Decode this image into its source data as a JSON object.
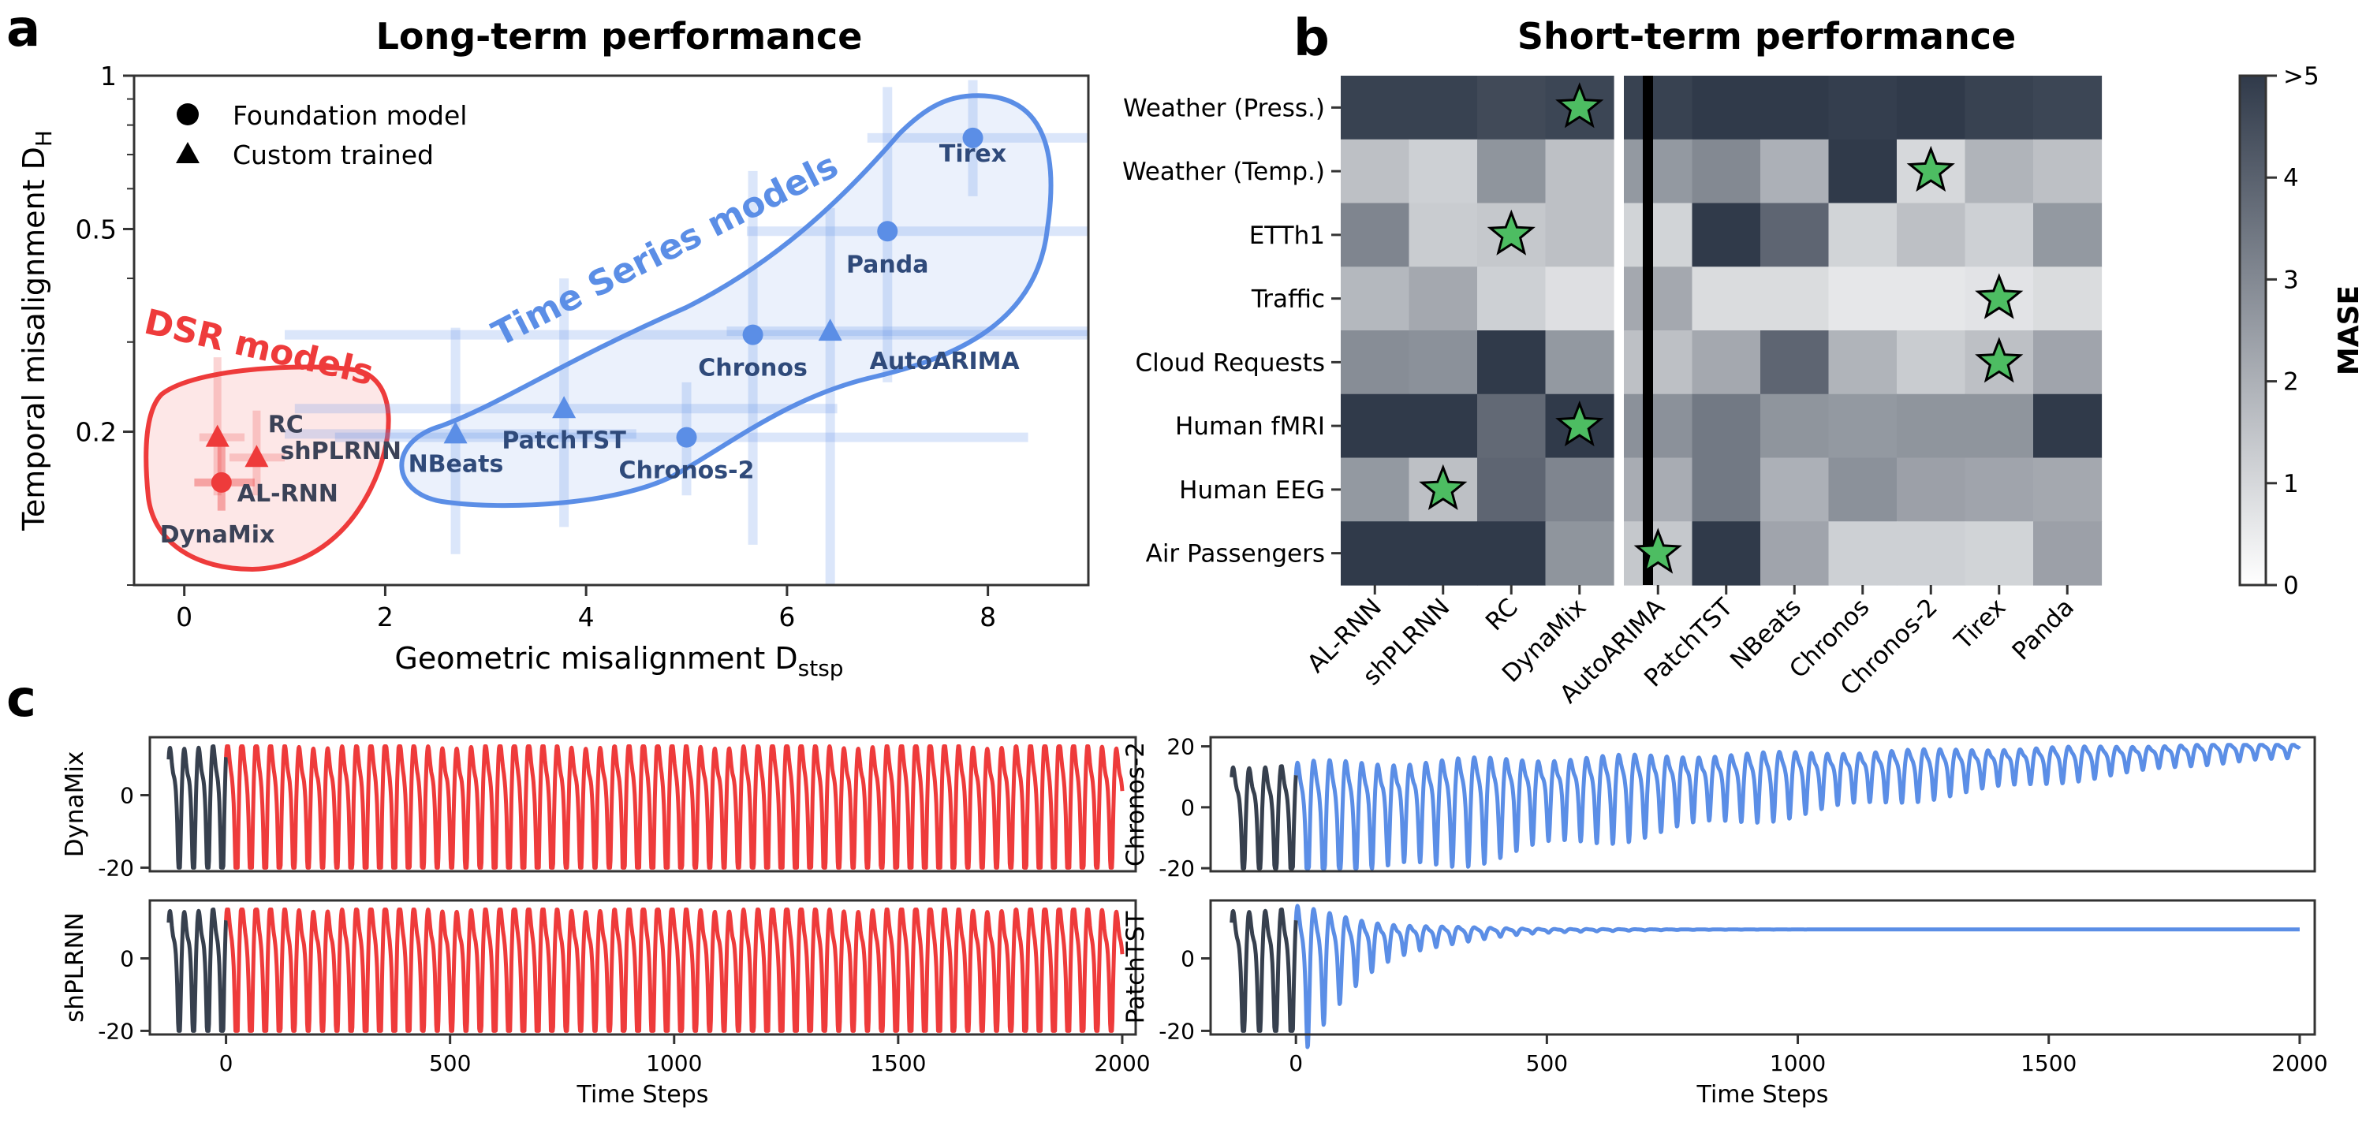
{
  "panels": {
    "a": {
      "letter": "a",
      "title": "Long-term performance"
    },
    "b": {
      "letter": "b",
      "title": "Short-term performance"
    },
    "c": {
      "letter": "c"
    }
  },
  "colors": {
    "dsr": "#ee3b3b",
    "ts": "#5b8ee6",
    "ts_label": "#2f4a7a",
    "dark_series": "#37404e",
    "star": "#4dbd62"
  },
  "chart_data": [
    {
      "id": "scatter",
      "type": "scatter",
      "title": "Long-term performance",
      "xlabel": "Geometric misalignment D",
      "xlabel_sub": "stsp",
      "ylabel": "Temporal misalignment D",
      "ylabel_sub": "H",
      "xlim": [
        -0.5,
        9
      ],
      "ylim": [
        0.1,
        1.0
      ],
      "yscale": "log",
      "xticks": [
        0,
        2,
        4,
        6,
        8
      ],
      "yticks": [
        0.2,
        0.5,
        1
      ],
      "ytick_labels": [
        "0.2",
        "0.5",
        "1"
      ],
      "legend": {
        "position": "top-left",
        "entries": [
          {
            "label": "Foundation model",
            "marker": "circle"
          },
          {
            "label": "Custom trained",
            "marker": "triangle"
          }
        ]
      },
      "groups": [
        {
          "label": "DSR models",
          "color": "#ee3b3b"
        },
        {
          "label": "Time Series models",
          "color": "#5b8ee6"
        }
      ],
      "points": [
        {
          "name": "RC",
          "x": 0.33,
          "y": 0.195,
          "marker": "triangle",
          "group": "dsr",
          "xerr": [
            0.15,
            0.6
          ],
          "yerr": [
            0.15,
            0.28
          ]
        },
        {
          "name": "shPLRNN",
          "x": 0.72,
          "y": 0.178,
          "marker": "triangle",
          "group": "dsr",
          "xerr": [
            0.45,
            1.0
          ],
          "yerr": [
            0.15,
            0.22
          ]
        },
        {
          "name": "AL-RNN",
          "x": 0.37,
          "y": 0.159,
          "marker": "circle",
          "group": "dsr",
          "xerr": [
            0.1,
            0.7
          ],
          "yerr": [
            0.14,
            0.19
          ]
        },
        {
          "name": "DynaMix",
          "x": 0.37,
          "y": 0.159,
          "marker": "circle",
          "group": "dsr",
          "xerr": [
            0.1,
            0.7
          ],
          "yerr": [
            0.14,
            0.19
          ]
        },
        {
          "name": "NBeats",
          "x": 2.7,
          "y": 0.198,
          "marker": "triangle",
          "group": "ts",
          "xerr": [
            1.0,
            4.5
          ],
          "yerr": [
            0.115,
            0.32
          ]
        },
        {
          "name": "PatchTST",
          "x": 3.78,
          "y": 0.222,
          "marker": "triangle",
          "group": "ts",
          "xerr": [
            1.1,
            6.5
          ],
          "yerr": [
            0.13,
            0.4
          ]
        },
        {
          "name": "Chronos-2",
          "x": 5.0,
          "y": 0.195,
          "marker": "circle",
          "group": "ts",
          "xerr": [
            1.5,
            8.4
          ],
          "yerr": [
            0.15,
            0.25
          ]
        },
        {
          "name": "Chronos",
          "x": 5.66,
          "y": 0.31,
          "marker": "circle",
          "group": "ts",
          "xerr": [
            1.0,
            9.0
          ],
          "yerr": [
            0.12,
            0.65
          ]
        },
        {
          "name": "AutoARIMA",
          "x": 6.43,
          "y": 0.315,
          "marker": "triangle",
          "group": "ts",
          "xerr": [
            5.4,
            9.0
          ],
          "yerr": [
            0.1,
            0.55
          ]
        },
        {
          "name": "Panda",
          "x": 7.0,
          "y": 0.495,
          "marker": "circle",
          "group": "ts",
          "xerr": [
            5.6,
            9.0
          ],
          "yerr": [
            0.25,
            0.95
          ]
        },
        {
          "name": "Tirex",
          "x": 7.85,
          "y": 0.755,
          "marker": "circle",
          "group": "ts",
          "xerr": [
            6.8,
            9.0
          ],
          "yerr": [
            0.58,
            0.98
          ]
        }
      ]
    },
    {
      "id": "heatmap",
      "type": "heatmap",
      "title": "Short-term performance",
      "rows": [
        "Weather (Press.)",
        "Weather (Temp.)",
        "ETTh1",
        "Traffic",
        "Cloud Requests",
        "Human fMRI",
        "Human EEG",
        "Air Passengers"
      ],
      "columns": [
        "AL-RNN",
        "shPLRNN",
        "RC",
        "DynaMix",
        "AutoARIMA",
        "PatchTST",
        "NBeats",
        "Chronos",
        "Chronos-2",
        "Tirex",
        "Panda"
      ],
      "values": [
        [
          4.8,
          4.8,
          4.6,
          4.7,
          4.8,
          5.0,
          5.0,
          4.9,
          5.0,
          4.8,
          4.7
        ],
        [
          1.6,
          1.2,
          2.7,
          1.6,
          2.6,
          3.0,
          2.0,
          5.0,
          1.0,
          1.9,
          1.6
        ],
        [
          3.1,
          1.3,
          1.4,
          1.6,
          1.1,
          5.0,
          3.9,
          1.1,
          1.6,
          1.2,
          2.6
        ],
        [
          1.8,
          2.2,
          1.2,
          0.8,
          2.2,
          0.9,
          0.9,
          0.6,
          0.6,
          0.7,
          0.9
        ],
        [
          2.9,
          2.8,
          5.0,
          2.6,
          1.6,
          2.2,
          3.9,
          1.9,
          1.3,
          1.6,
          2.3
        ],
        [
          5.0,
          5.0,
          3.8,
          5.0,
          2.8,
          3.4,
          2.7,
          2.6,
          2.7,
          2.7,
          5.0
        ],
        [
          2.6,
          1.6,
          3.9,
          3.1,
          2.1,
          3.4,
          2.0,
          2.8,
          2.4,
          2.3,
          2.2
        ],
        [
          5.0,
          5.0,
          5.0,
          2.7,
          1.4,
          5.0,
          2.3,
          1.2,
          1.2,
          1.1,
          2.4
        ]
      ],
      "stars": [
        {
          "row": "Weather (Press.)",
          "column": "DynaMix"
        },
        {
          "row": "Weather (Temp.)",
          "column": "Chronos-2"
        },
        {
          "row": "ETTh1",
          "column": "RC"
        },
        {
          "row": "Traffic",
          "column": "Tirex"
        },
        {
          "row": "Cloud Requests",
          "column": "Tirex"
        },
        {
          "row": "Human fMRI",
          "column": "DynaMix"
        },
        {
          "row": "Human EEG",
          "column": "shPLRNN"
        },
        {
          "row": "Air Passengers",
          "column": "AutoARIMA"
        }
      ],
      "separator_after_column": "DynaMix",
      "colorbar": {
        "label": "MASE",
        "min": 0,
        "max": 5,
        "ticks": [
          0,
          1,
          2,
          3,
          4,
          5
        ],
        "tick_labels": [
          "0",
          "1",
          "2",
          "3",
          "4",
          ">5"
        ]
      }
    },
    {
      "id": "trace-dynamix",
      "type": "line",
      "ylabel": "DynaMix",
      "xlim": [
        -170,
        2030
      ],
      "ylim": [
        -21,
        16
      ],
      "yticks": [
        -20,
        0
      ],
      "xticks": [],
      "context_steps": 128,
      "prediction_steps": 2000,
      "prediction_color": "#ee3b3b",
      "behavior": "sustained oscillation, amplitude ~ +13 / -20 throughout"
    },
    {
      "id": "trace-chronos2",
      "type": "line",
      "ylabel": "Chronos-2",
      "xlim": [
        -170,
        2030
      ],
      "ylim": [
        -21,
        23
      ],
      "yticks": [
        -20,
        0,
        20
      ],
      "xticks": [],
      "context_steps": 128,
      "prediction_steps": 2000,
      "prediction_color": "#5b8ee6",
      "behavior": "oscillation drifting upward and damping toward ~19"
    },
    {
      "id": "trace-shplrnn",
      "type": "line",
      "ylabel": "shPLRNN",
      "xlabel": "Time Steps",
      "xlim": [
        -170,
        2030
      ],
      "ylim": [
        -21,
        16
      ],
      "yticks": [
        -20,
        0
      ],
      "xticks": [
        0,
        500,
        1000,
        1500,
        2000
      ],
      "context_steps": 128,
      "prediction_steps": 2000,
      "prediction_color": "#ee3b3b",
      "behavior": "sustained oscillation, amplitude ~ +13 / -20 throughout"
    },
    {
      "id": "trace-patchtst",
      "type": "line",
      "ylabel": "PatchTST",
      "xlabel": "Time Steps",
      "xlim": [
        -170,
        2030
      ],
      "ylim": [
        -21,
        16
      ],
      "yticks": [
        -20,
        0
      ],
      "xticks": [
        0,
        500,
        1000,
        1500,
        2000
      ],
      "context_steps": 128,
      "prediction_steps": 2000,
      "prediction_color": "#5b8ee6",
      "behavior": "oscillation decaying to a constant ~8"
    }
  ]
}
